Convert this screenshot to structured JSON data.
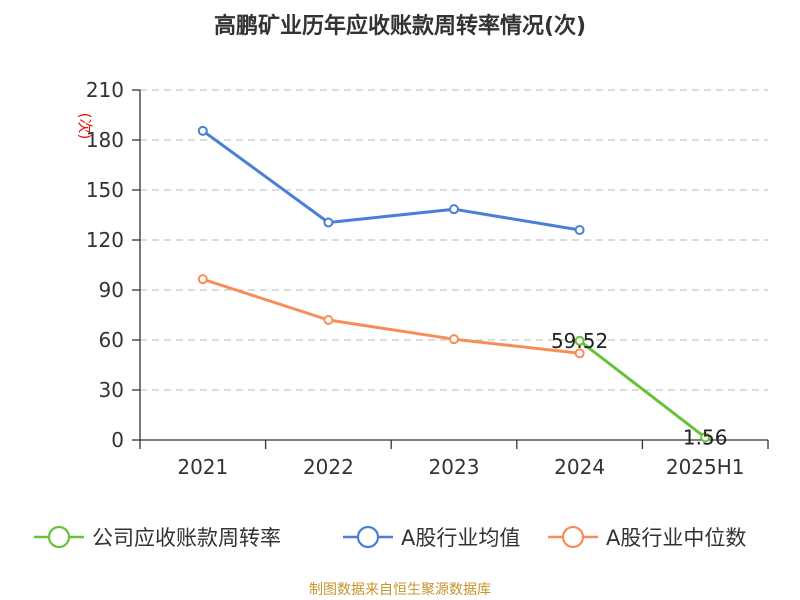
{
  "title": "高鹏矿业历年应收账款周转率情况(次)",
  "source": "制图数据来自恒生聚源数据库",
  "chart_data": {
    "type": "line",
    "title": "高鹏矿业历年应收账款周转率情况(次)",
    "categories": [
      "2021",
      "2022",
      "2023",
      "2024",
      "2025H1"
    ],
    "ylabel": "(次)",
    "ylim": [
      0,
      210
    ],
    "yticks": [
      0,
      30,
      60,
      90,
      120,
      150,
      180,
      210
    ],
    "ytick_labels": [
      "0",
      "30",
      "60",
      "90",
      "120",
      "150",
      "180",
      "210"
    ],
    "grid": true,
    "legend_position": "bottom",
    "series": [
      {
        "name": "公司应收账款周转率",
        "color": "#67c23a",
        "values": [
          null,
          null,
          null,
          59.52,
          1.56
        ],
        "labels": [
          null,
          null,
          null,
          "59.52",
          "1.56"
        ]
      },
      {
        "name": "A股行业均值",
        "color": "#4a7fd8",
        "values": [
          185.5,
          130.5,
          138.5,
          126.0,
          null
        ]
      },
      {
        "name": "A股行业中位数",
        "color": "#f98d5a",
        "values": [
          96.5,
          72.0,
          60.5,
          52.0,
          null
        ]
      }
    ]
  }
}
